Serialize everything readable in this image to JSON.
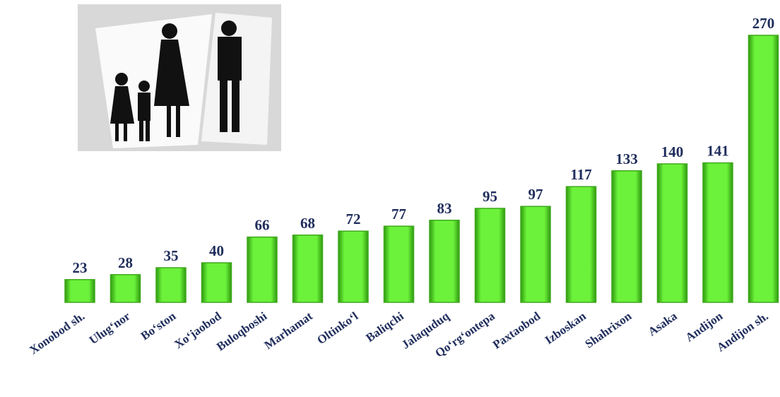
{
  "chart_data": {
    "type": "bar",
    "categories": [
      "Xonobod sh.",
      "Ulug‘nor",
      "Bo‘ston",
      "Xo‘jaobod",
      "Buloqboshi",
      "Marhamat",
      "Oltinko‘l",
      "Baliqchi",
      "Jalaquduq",
      "Qo‘rg‘ontepa",
      "Paxtaobod",
      "Izboskan",
      "Shahrixon",
      "Asaka",
      "Andijon",
      "Andijon sh."
    ],
    "values": [
      23,
      28,
      35,
      40,
      66,
      68,
      72,
      77,
      83,
      95,
      97,
      117,
      133,
      140,
      141,
      270
    ],
    "color": "#66ee33"
  }
}
